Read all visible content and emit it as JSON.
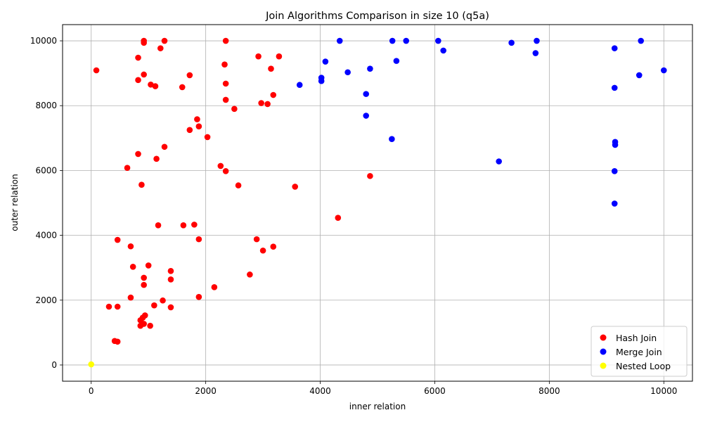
{
  "chart_data": {
    "type": "scatter",
    "title": "Join Algorithms Comparison in size 10 (q5a)",
    "xlabel": "inner relation",
    "ylabel": "outer relation",
    "xlim": [
      -500,
      10500
    ],
    "ylim": [
      -500,
      10500
    ],
    "xticks": [
      0,
      2000,
      4000,
      6000,
      8000,
      10000
    ],
    "yticks": [
      0,
      2000,
      4000,
      6000,
      8000,
      10000
    ],
    "grid": true,
    "legend_position": "lower-right",
    "series": [
      {
        "name": "Hash Join",
        "color": "#ff0000",
        "points": [
          [
            920,
            10000
          ],
          [
            1280,
            10000
          ],
          [
            2350,
            10000
          ],
          [
            920,
            9940
          ],
          [
            1210,
            9770
          ],
          [
            820,
            9480
          ],
          [
            2920,
            9520
          ],
          [
            3280,
            9520
          ],
          [
            90,
            9090
          ],
          [
            2330,
            9270
          ],
          [
            3140,
            9140
          ],
          [
            920,
            8960
          ],
          [
            1720,
            8940
          ],
          [
            820,
            8790
          ],
          [
            1040,
            8650
          ],
          [
            1120,
            8600
          ],
          [
            1590,
            8570
          ],
          [
            2350,
            8680
          ],
          [
            3180,
            8330
          ],
          [
            2350,
            8180
          ],
          [
            2970,
            8080
          ],
          [
            3080,
            8050
          ],
          [
            2500,
            7900
          ],
          [
            1850,
            7580
          ],
          [
            1880,
            7360
          ],
          [
            1720,
            7250
          ],
          [
            2030,
            7030
          ],
          [
            1280,
            6730
          ],
          [
            820,
            6510
          ],
          [
            1140,
            6360
          ],
          [
            630,
            6080
          ],
          [
            2260,
            6140
          ],
          [
            2350,
            5980
          ],
          [
            880,
            5560
          ],
          [
            2570,
            5540
          ],
          [
            3560,
            5500
          ],
          [
            4870,
            5830
          ],
          [
            4310,
            4540
          ],
          [
            1170,
            4310
          ],
          [
            1610,
            4310
          ],
          [
            1800,
            4330
          ],
          [
            460,
            3860
          ],
          [
            1880,
            3880
          ],
          [
            2890,
            3880
          ],
          [
            690,
            3660
          ],
          [
            3180,
            3650
          ],
          [
            3000,
            3530
          ],
          [
            730,
            3030
          ],
          [
            1000,
            3070
          ],
          [
            1390,
            2900
          ],
          [
            2770,
            2790
          ],
          [
            920,
            2690
          ],
          [
            1390,
            2640
          ],
          [
            920,
            2470
          ],
          [
            2150,
            2400
          ],
          [
            690,
            2080
          ],
          [
            1880,
            2100
          ],
          [
            1250,
            1990
          ],
          [
            310,
            1800
          ],
          [
            460,
            1800
          ],
          [
            1100,
            1840
          ],
          [
            1390,
            1780
          ],
          [
            940,
            1530
          ],
          [
            860,
            1380
          ],
          [
            900,
            1460
          ],
          [
            920,
            1270
          ],
          [
            860,
            1210
          ],
          [
            1030,
            1210
          ],
          [
            410,
            740
          ],
          [
            460,
            720
          ]
        ]
      },
      {
        "name": "Merge Join",
        "color": "#0000ff",
        "points": [
          [
            4340,
            10000
          ],
          [
            5260,
            10000
          ],
          [
            5500,
            10000
          ],
          [
            6060,
            10000
          ],
          [
            7780,
            10000
          ],
          [
            9600,
            10000
          ],
          [
            7340,
            9940
          ],
          [
            6150,
            9700
          ],
          [
            9140,
            9770
          ],
          [
            7760,
            9620
          ],
          [
            4090,
            9360
          ],
          [
            5330,
            9380
          ],
          [
            4870,
            9140
          ],
          [
            4480,
            9030
          ],
          [
            10000,
            9090
          ],
          [
            9570,
            8940
          ],
          [
            4020,
            8860
          ],
          [
            4020,
            8760
          ],
          [
            3640,
            8640
          ],
          [
            9140,
            8550
          ],
          [
            4800,
            8360
          ],
          [
            4800,
            7690
          ],
          [
            5250,
            6970
          ],
          [
            9150,
            6880
          ],
          [
            9150,
            6790
          ],
          [
            7120,
            6280
          ],
          [
            9140,
            5980
          ],
          [
            9140,
            4980
          ]
        ]
      },
      {
        "name": "Nested Loop",
        "color": "#ffff00",
        "points": [
          [
            0,
            20
          ]
        ]
      }
    ]
  }
}
